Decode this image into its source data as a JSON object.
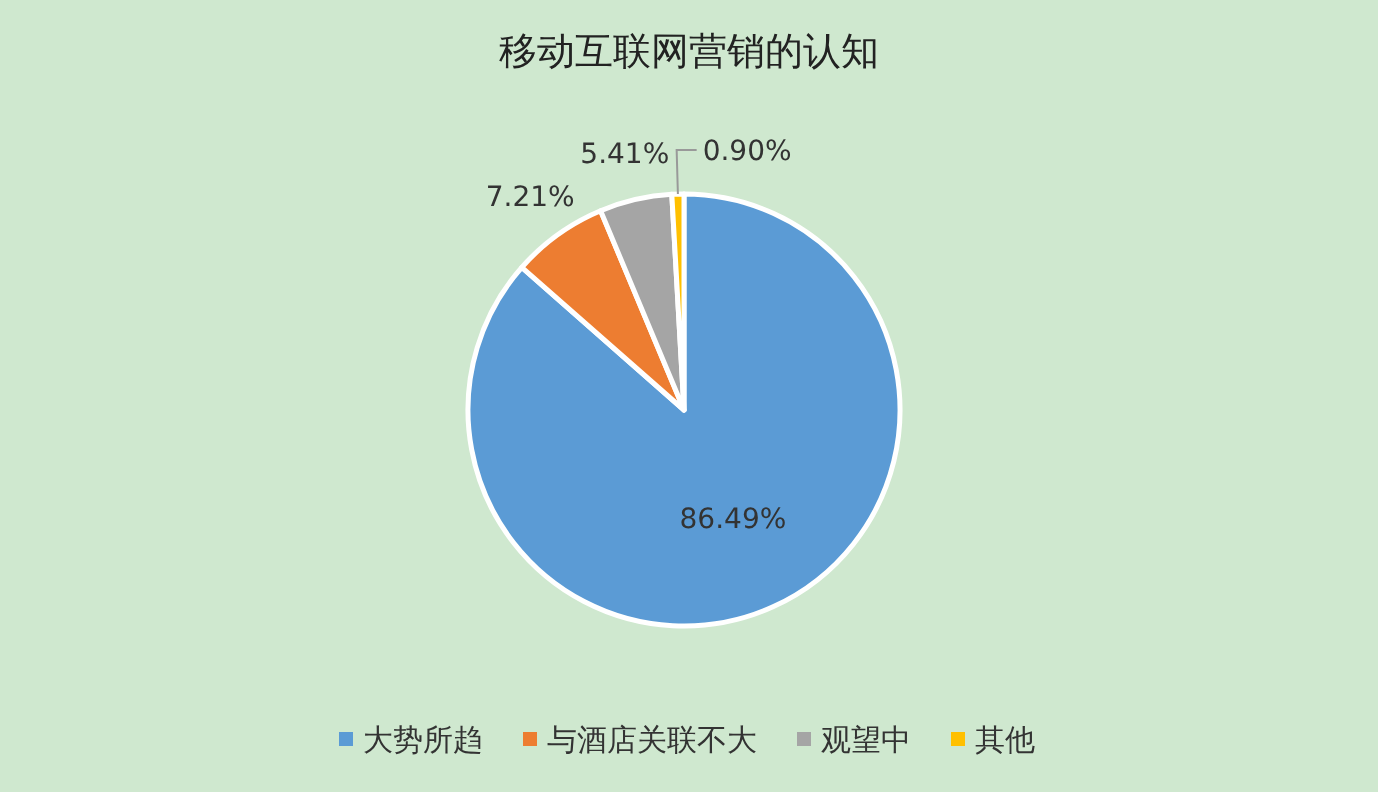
{
  "chart_data": {
    "type": "pie",
    "title": "移动互联网营销的认知",
    "categories": [
      "大势所趋",
      "与酒店关联不大",
      "观望中",
      "其他"
    ],
    "values": [
      86.49,
      7.21,
      5.41,
      0.9
    ],
    "value_labels": [
      "86.49%",
      "7.21%",
      "5.41%",
      "0.90%"
    ],
    "colors": [
      "#5b9bd5",
      "#ed7d31",
      "#a5a5a5",
      "#ffc000"
    ],
    "legend": "bottom"
  }
}
